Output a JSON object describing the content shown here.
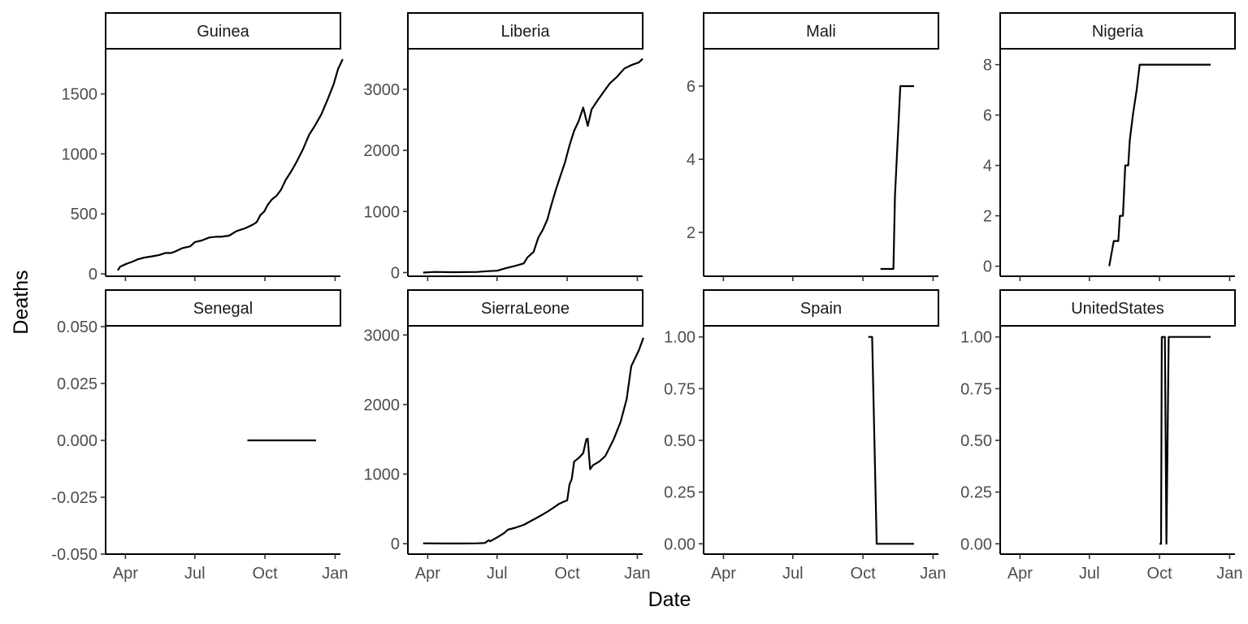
{
  "chart_data": {
    "type": "line",
    "xlabel": "Date",
    "ylabel": "Deaths",
    "x_ticks": [
      {
        "date": "2014-04-01",
        "label": "Apr"
      },
      {
        "date": "2014-07-01",
        "label": "Jul"
      },
      {
        "date": "2014-10-01",
        "label": "Oct"
      },
      {
        "date": "2015-01-01",
        "label": "Jan"
      }
    ],
    "xlim": [
      "2014-03-06",
      "2015-01-08"
    ],
    "panels": [
      {
        "name": "Guinea",
        "ylim": [
          -20,
          1870
        ],
        "y_ticks": [
          {
            "v": 0,
            "label": "0"
          },
          {
            "v": 500,
            "label": "500"
          },
          {
            "v": 1000,
            "label": "1000"
          },
          {
            "v": 1500,
            "label": "1500"
          }
        ],
        "points": [
          [
            "2014-03-22",
            29
          ],
          [
            "2014-03-25",
            60
          ],
          [
            "2014-04-01",
            80
          ],
          [
            "2014-04-10",
            101
          ],
          [
            "2014-04-17",
            121
          ],
          [
            "2014-04-26",
            136
          ],
          [
            "2014-05-06",
            146
          ],
          [
            "2014-05-15",
            157
          ],
          [
            "2014-05-23",
            174
          ],
          [
            "2014-05-31",
            174
          ],
          [
            "2014-06-05",
            186
          ],
          [
            "2014-06-15",
            215
          ],
          [
            "2014-06-25",
            229
          ],
          [
            "2014-07-01",
            265
          ],
          [
            "2014-07-10",
            278
          ],
          [
            "2014-07-20",
            303
          ],
          [
            "2014-07-30",
            310
          ],
          [
            "2014-08-05",
            309
          ],
          [
            "2014-08-15",
            319
          ],
          [
            "2014-08-25",
            357
          ],
          [
            "2014-09-05",
            380
          ],
          [
            "2014-09-15",
            410
          ],
          [
            "2014-09-20",
            430
          ],
          [
            "2014-09-25",
            490
          ],
          [
            "2014-09-30",
            520
          ],
          [
            "2014-10-05",
            580
          ],
          [
            "2014-10-10",
            620
          ],
          [
            "2014-10-16",
            650
          ],
          [
            "2014-10-22",
            700
          ],
          [
            "2014-10-28",
            780
          ],
          [
            "2014-11-05",
            860
          ],
          [
            "2014-11-12",
            940
          ],
          [
            "2014-11-20",
            1040
          ],
          [
            "2014-11-28",
            1160
          ],
          [
            "2014-12-05",
            1230
          ],
          [
            "2014-12-14",
            1330
          ],
          [
            "2014-12-22",
            1450
          ],
          [
            "2014-12-30",
            1580
          ],
          [
            "2015-01-05",
            1710
          ],
          [
            "2015-01-11",
            1790
          ]
        ]
      },
      {
        "name": "Liberia",
        "ylim": [
          -60,
          3650
        ],
        "y_ticks": [
          {
            "v": 0,
            "label": "0"
          },
          {
            "v": 1000,
            "label": "1000"
          },
          {
            "v": 2000,
            "label": "2000"
          },
          {
            "v": 3000,
            "label": "3000"
          }
        ],
        "points": [
          [
            "2014-03-26",
            0
          ],
          [
            "2014-04-10",
            10
          ],
          [
            "2014-05-05",
            6
          ],
          [
            "2014-06-05",
            11
          ],
          [
            "2014-06-20",
            24
          ],
          [
            "2014-07-01",
            30
          ],
          [
            "2014-07-12",
            70
          ],
          [
            "2014-07-25",
            110
          ],
          [
            "2014-08-05",
            150
          ],
          [
            "2014-08-10",
            250
          ],
          [
            "2014-08-18",
            340
          ],
          [
            "2014-08-24",
            570
          ],
          [
            "2014-08-30",
            700
          ],
          [
            "2014-09-05",
            870
          ],
          [
            "2014-09-10",
            1100
          ],
          [
            "2014-09-16",
            1350
          ],
          [
            "2014-09-22",
            1580
          ],
          [
            "2014-09-28",
            1800
          ],
          [
            "2014-10-04",
            2080
          ],
          [
            "2014-10-10",
            2320
          ],
          [
            "2014-10-16",
            2480
          ],
          [
            "2014-10-22",
            2700
          ],
          [
            "2014-10-28",
            2400
          ],
          [
            "2014-11-02",
            2670
          ],
          [
            "2014-11-10",
            2820
          ],
          [
            "2014-11-18",
            2960
          ],
          [
            "2014-11-26",
            3100
          ],
          [
            "2014-12-05",
            3200
          ],
          [
            "2014-12-15",
            3340
          ],
          [
            "2014-12-25",
            3400
          ],
          [
            "2015-01-03",
            3440
          ],
          [
            "2015-01-08",
            3500
          ]
        ]
      },
      {
        "name": "Mali",
        "ylim": [
          0.8,
          7.0
        ],
        "y_ticks": [
          {
            "v": 2,
            "label": "2"
          },
          {
            "v": 4,
            "label": "4"
          },
          {
            "v": 6,
            "label": "6"
          }
        ],
        "points": [
          [
            "2014-10-24",
            1
          ],
          [
            "2014-11-10",
            1
          ],
          [
            "2014-11-12",
            3
          ],
          [
            "2014-11-19",
            6
          ],
          [
            "2014-12-07",
            6
          ]
        ]
      },
      {
        "name": "Nigeria",
        "ylim": [
          -0.4,
          8.6
        ],
        "y_ticks": [
          {
            "v": 0,
            "label": "0"
          },
          {
            "v": 2,
            "label": "2"
          },
          {
            "v": 4,
            "label": "4"
          },
          {
            "v": 6,
            "label": "6"
          },
          {
            "v": 8,
            "label": "8"
          }
        ],
        "points": [
          [
            "2014-07-27",
            0
          ],
          [
            "2014-08-02",
            1
          ],
          [
            "2014-08-08",
            1
          ],
          [
            "2014-08-10",
            2
          ],
          [
            "2014-08-14",
            2
          ],
          [
            "2014-08-17",
            4
          ],
          [
            "2014-08-21",
            4
          ],
          [
            "2014-08-23",
            5
          ],
          [
            "2014-08-27",
            6
          ],
          [
            "2014-09-01",
            7
          ],
          [
            "2014-09-05",
            8
          ],
          [
            "2014-12-07",
            8
          ]
        ]
      },
      {
        "name": "Senegal",
        "ylim": [
          -0.05,
          0.05
        ],
        "y_ticks": [
          {
            "v": -0.05,
            "label": "-0.050"
          },
          {
            "v": -0.025,
            "label": "-0.025"
          },
          {
            "v": 0,
            "label": "0.000"
          },
          {
            "v": 0.025,
            "label": "0.025"
          },
          {
            "v": 0.05,
            "label": "0.050"
          }
        ],
        "points": [
          [
            "2014-09-08",
            0
          ],
          [
            "2014-12-07",
            0
          ]
        ]
      },
      {
        "name": "SierraLeone",
        "ylim": [
          -150,
          3120
        ],
        "y_ticks": [
          {
            "v": 0,
            "label": "0"
          },
          {
            "v": 1000,
            "label": "1000"
          },
          {
            "v": 2000,
            "label": "2000"
          },
          {
            "v": 3000,
            "label": "3000"
          }
        ],
        "points": [
          [
            "2014-03-26",
            5
          ],
          [
            "2014-04-20",
            3
          ],
          [
            "2014-05-20",
            3
          ],
          [
            "2014-06-05",
            5
          ],
          [
            "2014-06-15",
            10
          ],
          [
            "2014-06-20",
            50
          ],
          [
            "2014-06-22",
            35
          ],
          [
            "2014-07-01",
            90
          ],
          [
            "2014-07-10",
            150
          ],
          [
            "2014-07-15",
            200
          ],
          [
            "2014-07-25",
            230
          ],
          [
            "2014-08-05",
            270
          ],
          [
            "2014-08-15",
            330
          ],
          [
            "2014-08-25",
            390
          ],
          [
            "2014-09-05",
            460
          ],
          [
            "2014-09-12",
            510
          ],
          [
            "2014-09-20",
            570
          ],
          [
            "2014-09-28",
            610
          ],
          [
            "2014-10-01",
            622
          ],
          [
            "2014-10-04",
            850
          ],
          [
            "2014-10-07",
            930
          ],
          [
            "2014-10-10",
            1180
          ],
          [
            "2014-10-16",
            1230
          ],
          [
            "2014-10-22",
            1300
          ],
          [
            "2014-10-26",
            1500
          ],
          [
            "2014-10-28",
            1510
          ],
          [
            "2014-10-31",
            1070
          ],
          [
            "2014-11-04",
            1130
          ],
          [
            "2014-11-12",
            1180
          ],
          [
            "2014-11-20",
            1260
          ],
          [
            "2014-12-01",
            1500
          ],
          [
            "2014-12-10",
            1750
          ],
          [
            "2014-12-18",
            2080
          ],
          [
            "2014-12-24",
            2550
          ],
          [
            "2015-01-03",
            2780
          ],
          [
            "2015-01-09",
            2960
          ]
        ]
      },
      {
        "name": "Spain",
        "ylim": [
          -0.05,
          1.05
        ],
        "y_ticks": [
          {
            "v": 0,
            "label": "0.00"
          },
          {
            "v": 0.25,
            "label": "0.25"
          },
          {
            "v": 0.5,
            "label": "0.50"
          },
          {
            "v": 0.75,
            "label": "0.75"
          },
          {
            "v": 1,
            "label": "1.00"
          }
        ],
        "points": [
          [
            "2014-10-08",
            1
          ],
          [
            "2014-10-13",
            1
          ],
          [
            "2014-10-19",
            0
          ],
          [
            "2014-12-07",
            0
          ]
        ]
      },
      {
        "name": "UnitedStates",
        "ylim": [
          -0.05,
          1.05
        ],
        "y_ticks": [
          {
            "v": 0,
            "label": "0.00"
          },
          {
            "v": 0.25,
            "label": "0.25"
          },
          {
            "v": 0.5,
            "label": "0.50"
          },
          {
            "v": 0.75,
            "label": "0.75"
          },
          {
            "v": 1,
            "label": "1.00"
          }
        ],
        "points": [
          [
            "2014-10-01",
            0
          ],
          [
            "2014-10-03",
            0
          ],
          [
            "2014-10-04",
            1
          ],
          [
            "2014-10-08",
            1
          ],
          [
            "2014-10-10",
            0
          ],
          [
            "2014-10-13",
            1
          ],
          [
            "2014-12-07",
            1
          ]
        ]
      }
    ]
  }
}
